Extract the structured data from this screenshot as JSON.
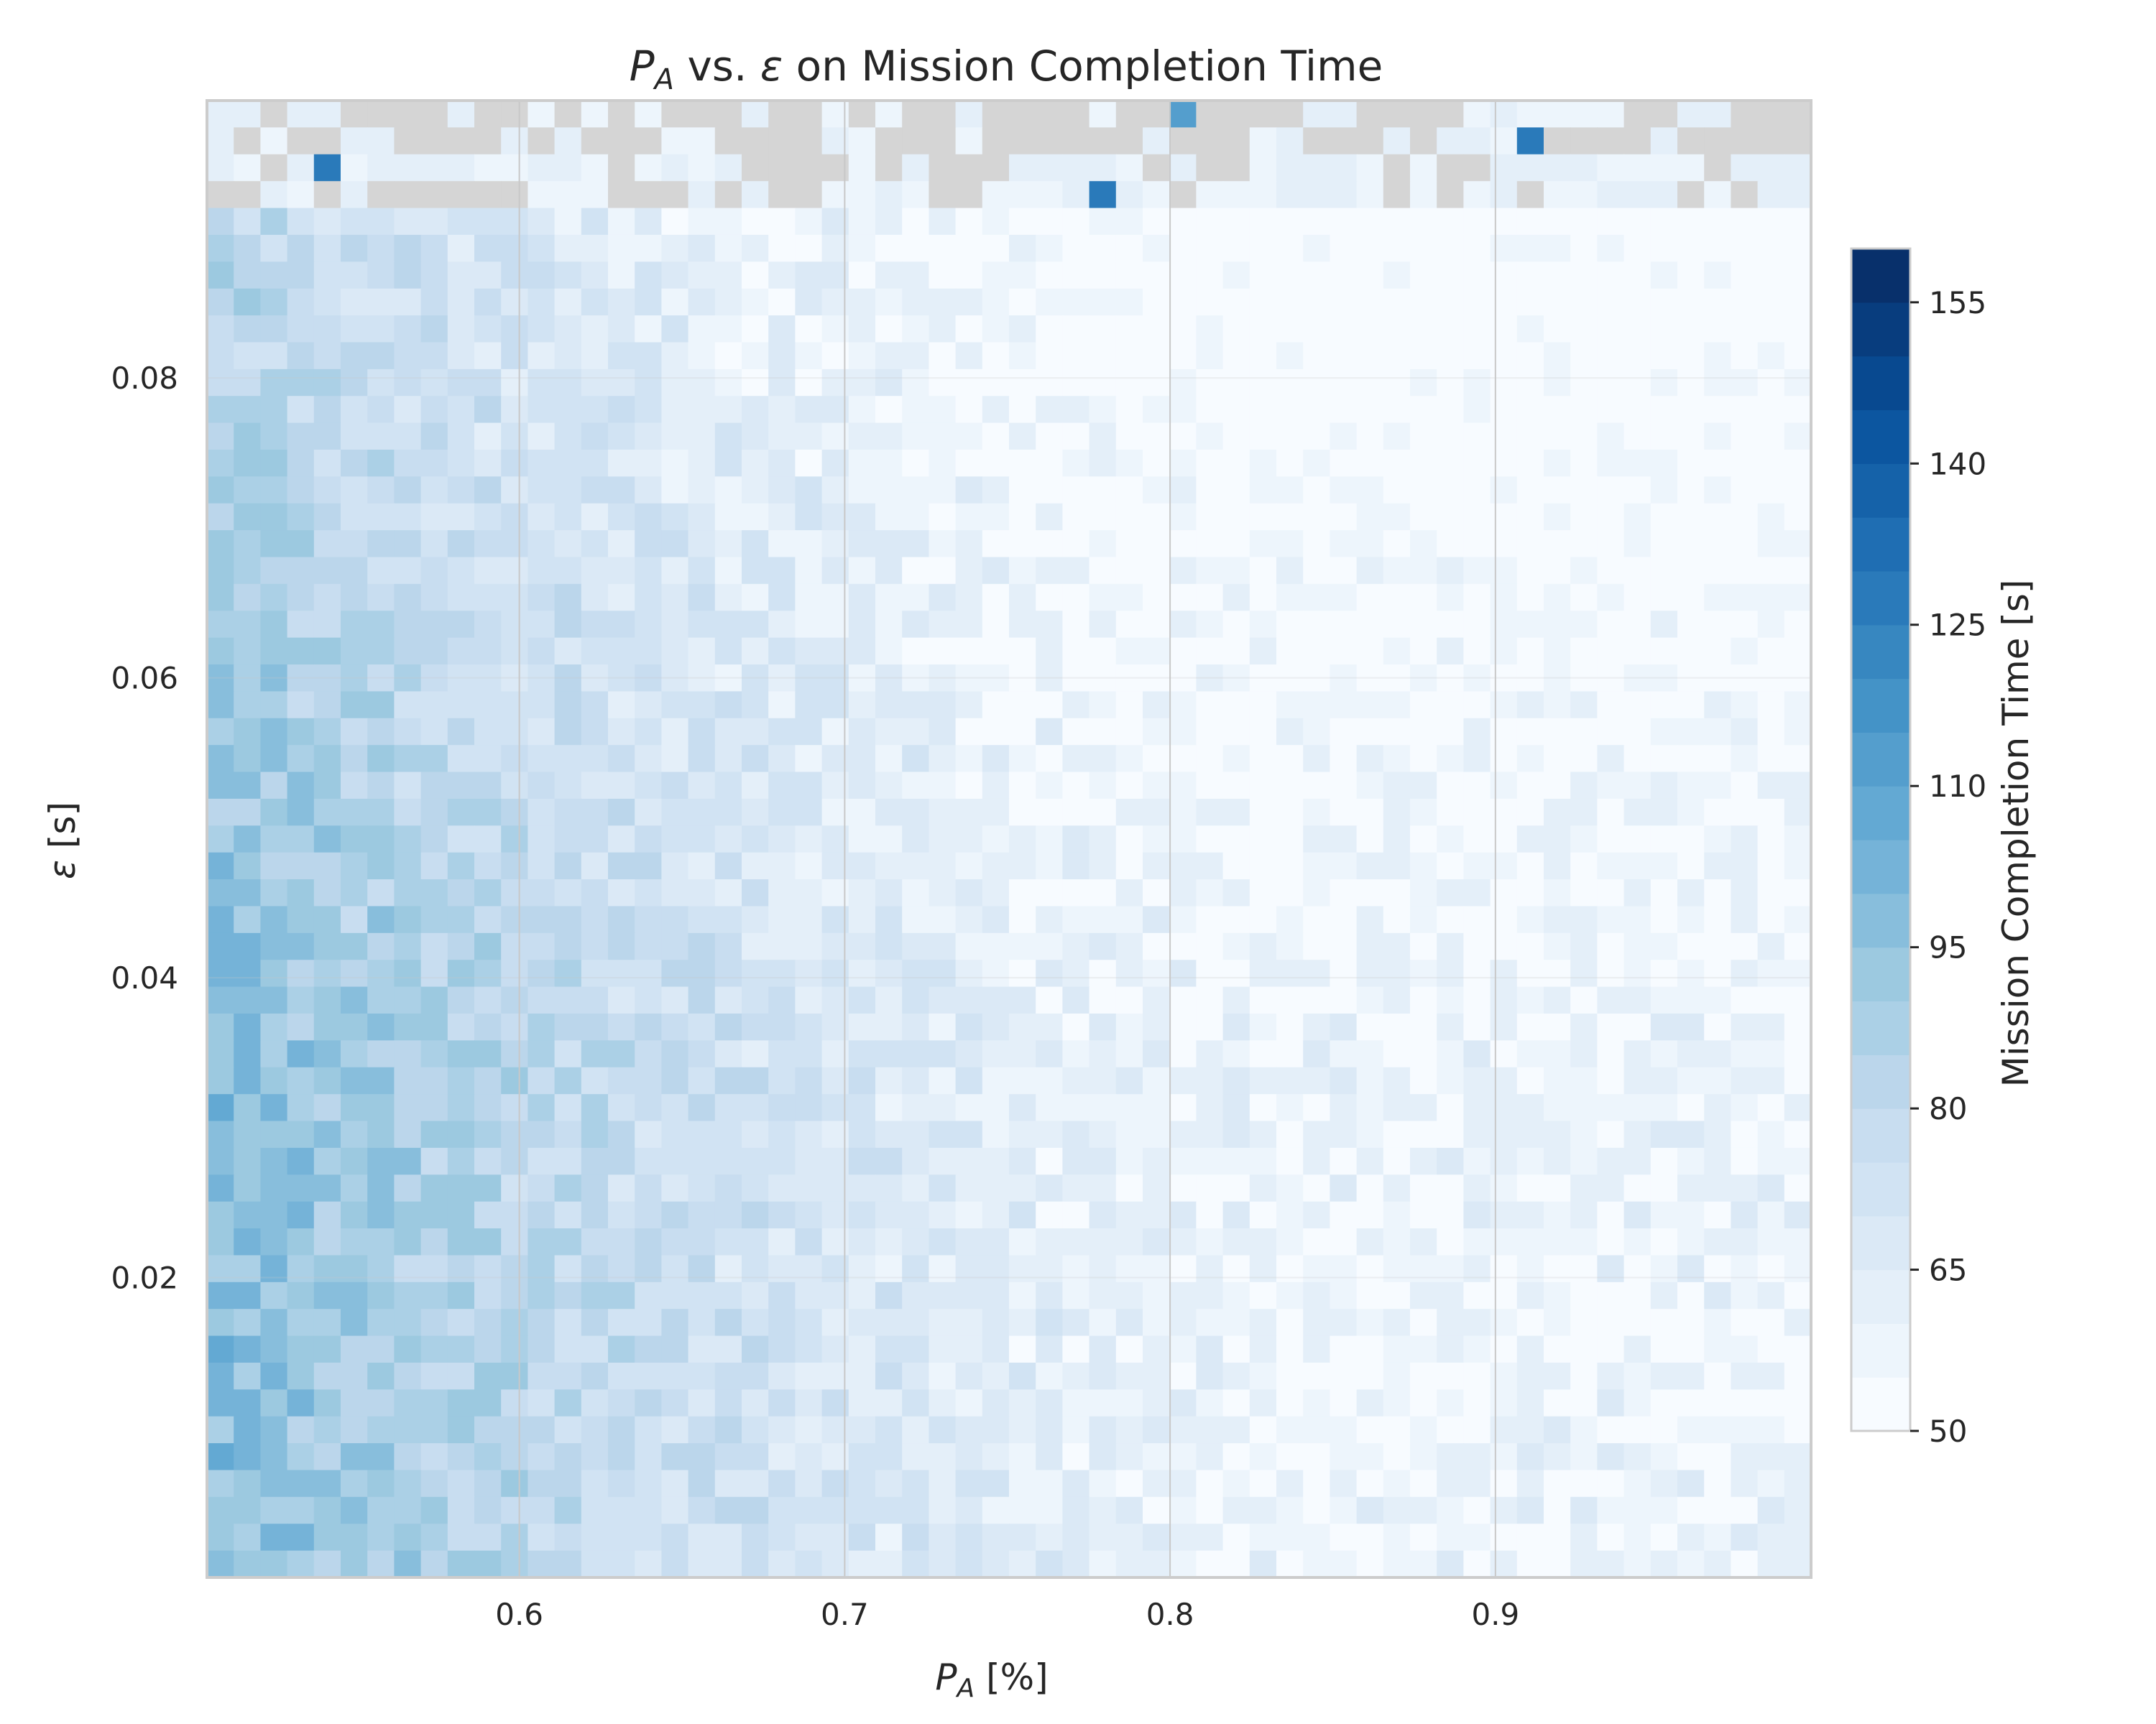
{
  "chart_data": {
    "type": "heatmap",
    "title_parts": {
      "sym": "P",
      "sub": "A",
      "mid": " vs. ",
      "eps": "ε",
      "rest": " on Mission Completion Time"
    },
    "xlabel_parts": {
      "sym": "P",
      "sub": "A",
      "rest": " [%]"
    },
    "ylabel_parts": {
      "eps": "ε",
      "rest": " [s]"
    },
    "x_range": [
      0.504,
      0.997
    ],
    "y_range": [
      0.0,
      0.0985
    ],
    "x_ticks": [
      "0.6",
      "0.7",
      "0.8",
      "0.9"
    ],
    "y_ticks": [
      "0.02",
      "0.04",
      "0.06",
      "0.08"
    ],
    "colorbar": {
      "label": "Mission Completion Time [s]",
      "ticks": [
        "50",
        "65",
        "80",
        "95",
        "110",
        "125",
        "140",
        "155"
      ],
      "range": [
        50,
        160
      ],
      "levels": [
        50,
        55,
        60,
        65,
        70,
        75,
        80,
        85,
        90,
        95,
        100,
        105,
        110,
        115,
        120,
        125,
        130,
        135,
        140,
        145,
        150,
        155,
        160
      ],
      "colormap": "Blues"
    },
    "grid": true,
    "missing_region_color": "#d5d5d5",
    "missing_band_eps": [
      0.0905,
      0.0985
    ],
    "trend": "Completion time is highest (about 95-115 s) at low P_A (0.5-0.6) and low epsilon, falling to about 55-65 s at high P_A (0.85-1.0); white/grey cells near the top edge mark runs without data."
  }
}
